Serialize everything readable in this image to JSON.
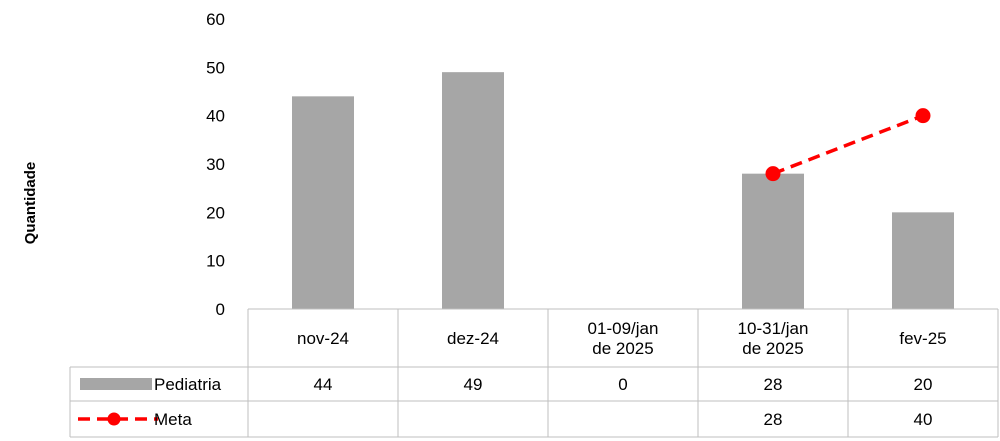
{
  "chart_data": {
    "type": "bar",
    "ylabel": "Quantidade",
    "ylim": [
      0,
      60
    ],
    "yticks": [
      0,
      10,
      20,
      30,
      40,
      50,
      60
    ],
    "grid": false,
    "categories": [
      [
        "nov-24"
      ],
      [
        "dez-24"
      ],
      [
        "01-09/jan",
        "de 2025"
      ],
      [
        "10-31/jan",
        "de 2025"
      ],
      [
        "fev-25"
      ]
    ],
    "series": [
      {
        "name": "Pediatria",
        "type": "bar",
        "color": "#a6a6a6",
        "values": [
          44,
          49,
          0,
          28,
          20
        ],
        "table_values": [
          "44",
          "49",
          "0",
          "28",
          "20"
        ]
      },
      {
        "name": "Meta",
        "type": "line",
        "style": "dashed",
        "marker": "circle",
        "color": "#ff0000",
        "values": [
          null,
          null,
          null,
          28,
          40
        ],
        "table_values": [
          "",
          "",
          "",
          "28",
          "40"
        ]
      }
    ],
    "data_table": true
  }
}
